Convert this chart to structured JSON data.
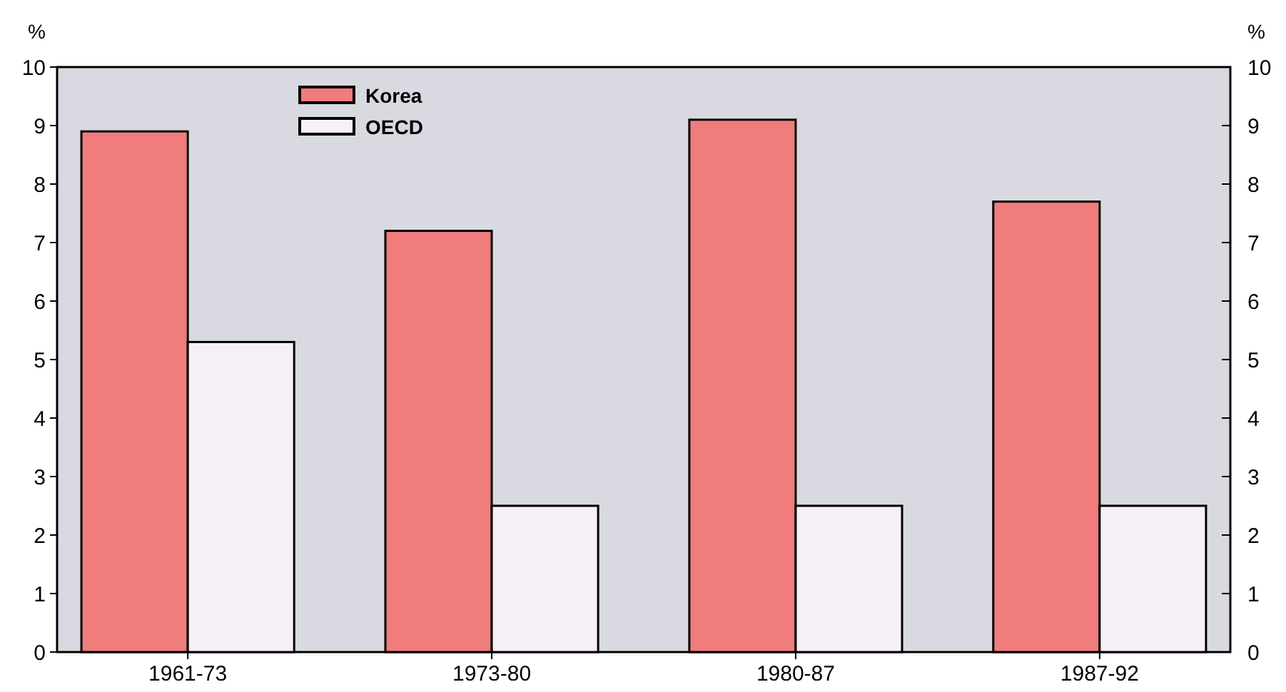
{
  "chart_data": {
    "type": "bar",
    "categories": [
      "1961-73",
      "1973-80",
      "1980-87",
      "1987-92"
    ],
    "series": [
      {
        "name": "Korea",
        "color": "#f07c7c",
        "values": [
          8.9,
          7.2,
          9.1,
          7.7
        ]
      },
      {
        "name": "OECD",
        "color": "#f8f0f8",
        "values": [
          5.3,
          2.5,
          2.5,
          2.5
        ]
      }
    ],
    "ylabel": "%",
    "y2label": "%",
    "ylim": [
      0,
      10
    ],
    "yticks": [
      0,
      1,
      2,
      3,
      4,
      5,
      6,
      7,
      8,
      9,
      10
    ],
    "y2lim": [
      0,
      10
    ],
    "y2ticks": [
      0,
      1,
      2,
      3,
      4,
      5,
      6,
      7,
      8,
      9,
      10
    ],
    "legend": "top left",
    "grid": false
  }
}
